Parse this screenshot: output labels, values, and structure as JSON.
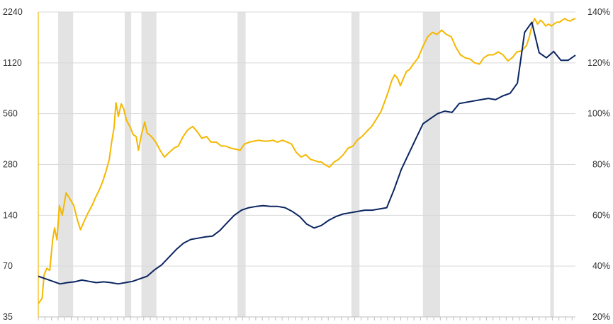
{
  "chart_data": {
    "type": "line",
    "title": "",
    "xlabel": "",
    "ylabel_left": "",
    "ylabel_right": "",
    "grid": true,
    "legend": "none",
    "y_left": {
      "scale": "log2",
      "ylim": [
        35,
        2240
      ],
      "ticks": [
        35,
        70,
        140,
        280,
        560,
        1120,
        2240
      ],
      "tick_labels": [
        "35",
        "70",
        "140",
        "280",
        "560",
        "1120",
        "2240"
      ]
    },
    "y_right": {
      "scale": "linear",
      "ylim": [
        20,
        140
      ],
      "ticks": [
        20,
        40,
        60,
        80,
        100,
        120,
        140
      ],
      "tick_labels": [
        "20%",
        "40%",
        "60%",
        "80%",
        "100%",
        "120%",
        "140%"
      ]
    },
    "x_index_range": [
      0,
      100
    ],
    "shaded_periods": [
      [
        3.7,
        6.5
      ],
      [
        16.1,
        17.3
      ],
      [
        19.2,
        22.0
      ],
      [
        37.1,
        38.6
      ],
      [
        58.3,
        59.8
      ],
      [
        71.6,
        74.8
      ],
      [
        95.3,
        96.0
      ]
    ],
    "series": [
      {
        "axis": "left",
        "color": "#f5b800",
        "points": [
          [
            0,
            42
          ],
          [
            0.8,
            45
          ],
          [
            1.2,
            62
          ],
          [
            1.8,
            68
          ],
          [
            2.4,
            66
          ],
          [
            3.0,
            100
          ],
          [
            3.4,
            118
          ],
          [
            3.9,
            100
          ],
          [
            4.4,
            160
          ],
          [
            5.0,
            140
          ],
          [
            5.8,
            190
          ],
          [
            6.6,
            175
          ],
          [
            7.4,
            160
          ],
          [
            8.2,
            130
          ],
          [
            8.8,
            115
          ],
          [
            9.6,
            130
          ],
          [
            10.4,
            145
          ],
          [
            11.2,
            160
          ],
          [
            12.0,
            180
          ],
          [
            12.8,
            200
          ],
          [
            13.5,
            225
          ],
          [
            14.2,
            260
          ],
          [
            14.8,
            300
          ],
          [
            15.3,
            380
          ],
          [
            15.8,
            460
          ],
          [
            16.2,
            650
          ],
          [
            16.7,
            540
          ],
          [
            17.3,
            640
          ],
          [
            17.8,
            600
          ],
          [
            18.4,
            510
          ],
          [
            19.1,
            470
          ],
          [
            19.8,
            420
          ],
          [
            20.4,
            410
          ],
          [
            20.9,
            340
          ],
          [
            21.5,
            420
          ],
          [
            22.2,
            500
          ],
          [
            22.7,
            430
          ],
          [
            23.6,
            410
          ],
          [
            24.5,
            380
          ],
          [
            25.4,
            340
          ],
          [
            26.3,
            310
          ],
          [
            27.3,
            330
          ],
          [
            28.3,
            350
          ],
          [
            29.2,
            360
          ],
          [
            30.2,
            410
          ],
          [
            31.2,
            450
          ],
          [
            32.2,
            470
          ],
          [
            33.1,
            440
          ],
          [
            34.1,
            400
          ],
          [
            35.1,
            410
          ],
          [
            36.0,
            380
          ],
          [
            37.1,
            380
          ],
          [
            38.2,
            360
          ],
          [
            39.1,
            360
          ],
          [
            40.1,
            350
          ],
          [
            41.1,
            345
          ],
          [
            42.1,
            340
          ],
          [
            43.0,
            370
          ],
          [
            44.0,
            380
          ],
          [
            45.0,
            385
          ],
          [
            46.0,
            390
          ],
          [
            47.0,
            385
          ],
          [
            47.9,
            385
          ],
          [
            48.9,
            390
          ],
          [
            49.9,
            380
          ],
          [
            50.9,
            390
          ],
          [
            51.9,
            380
          ],
          [
            52.8,
            370
          ],
          [
            53.8,
            330
          ],
          [
            54.8,
            310
          ],
          [
            55.8,
            320
          ],
          [
            56.8,
            300
          ],
          [
            57.7,
            295
          ],
          [
            58.4,
            290
          ],
          [
            59.0,
            290
          ],
          [
            59.7,
            280
          ],
          [
            60.7,
            270
          ],
          [
            61.7,
            290
          ],
          [
            62.6,
            300
          ],
          [
            63.6,
            320
          ],
          [
            64.6,
            350
          ],
          [
            65.6,
            360
          ],
          [
            66.5,
            390
          ],
          [
            67.5,
            410
          ],
          [
            68.5,
            440
          ],
          [
            69.5,
            470
          ],
          [
            70.5,
            520
          ],
          [
            71.5,
            580
          ],
          [
            72.4,
            680
          ],
          [
            73.0,
            760
          ],
          [
            73.7,
            880
          ],
          [
            74.3,
            950
          ],
          [
            74.9,
            910
          ],
          [
            75.5,
            820
          ],
          [
            76.1,
            900
          ],
          [
            76.8,
            1000
          ],
          [
            77.4,
            1020
          ],
          [
            78.2,
            1100
          ],
          [
            79.2,
            1200
          ],
          [
            80.2,
            1400
          ],
          [
            81.2,
            1600
          ],
          [
            82.2,
            1700
          ],
          [
            83.1,
            1650
          ],
          [
            84.1,
            1750
          ],
          [
            85.1,
            1650
          ],
          [
            86.1,
            1600
          ],
          [
            87.0,
            1400
          ],
          [
            88.0,
            1250
          ],
          [
            89.0,
            1200
          ],
          [
            90.0,
            1180
          ],
          [
            91.0,
            1120
          ],
          [
            92.0,
            1100
          ],
          [
            92.9,
            1200
          ],
          [
            93.9,
            1250
          ],
          [
            94.9,
            1250
          ],
          [
            95.9,
            1300
          ],
          [
            96.9,
            1250
          ],
          [
            97.9,
            1150
          ],
          [
            98.8,
            1200
          ],
          [
            99.8,
            1300
          ],
          [
            100.8,
            1320
          ],
          [
            101.8,
            1420
          ],
          [
            102.4,
            1600
          ],
          [
            103.0,
            1900
          ],
          [
            103.5,
            2050
          ],
          [
            104.1,
            1900
          ],
          [
            104.7,
            2000
          ],
          [
            105.2,
            1950
          ],
          [
            105.8,
            1850
          ],
          [
            106.4,
            1900
          ],
          [
            107.0,
            1850
          ],
          [
            107.5,
            1900
          ],
          [
            108.1,
            1950
          ],
          [
            108.7,
            1950
          ],
          [
            109.2,
            2000
          ],
          [
            109.8,
            2050
          ],
          [
            110.3,
            2000
          ],
          [
            110.9,
            1980
          ],
          [
            111.4,
            2020
          ],
          [
            112.0,
            2050
          ]
        ]
      },
      {
        "axis": "right",
        "color": "#0b2560",
        "points": [
          [
            0,
            36
          ],
          [
            2,
            35
          ],
          [
            4,
            34
          ],
          [
            6,
            33
          ],
          [
            8,
            33.5
          ],
          [
            10,
            33.8
          ],
          [
            12,
            34.5
          ],
          [
            14,
            34
          ],
          [
            16,
            33.5
          ],
          [
            18,
            33.8
          ],
          [
            20,
            33.5
          ],
          [
            22,
            33
          ],
          [
            24,
            33.5
          ],
          [
            26,
            34
          ],
          [
            28,
            35
          ],
          [
            30,
            36
          ],
          [
            32,
            38.5
          ],
          [
            34,
            40.5
          ],
          [
            36,
            43.5
          ],
          [
            38,
            46.5
          ],
          [
            40,
            49
          ],
          [
            42,
            50.5
          ],
          [
            44,
            51
          ],
          [
            46,
            51.5
          ],
          [
            48,
            51.8
          ],
          [
            50,
            54
          ],
          [
            52,
            57
          ],
          [
            54,
            60
          ],
          [
            56,
            62
          ],
          [
            58,
            63
          ],
          [
            60,
            63.5
          ],
          [
            62,
            63.8
          ],
          [
            64,
            63.5
          ],
          [
            66,
            63.5
          ],
          [
            68,
            63
          ],
          [
            70,
            61.5
          ],
          [
            72,
            59.5
          ],
          [
            74,
            56.5
          ],
          [
            76,
            55
          ],
          [
            78,
            56
          ],
          [
            80,
            58
          ],
          [
            82,
            59.5
          ],
          [
            84,
            60.5
          ],
          [
            86,
            61
          ],
          [
            88,
            61.5
          ],
          [
            90,
            62
          ],
          [
            92,
            62
          ],
          [
            94,
            62.5
          ],
          [
            96,
            63
          ],
          [
            98,
            70
          ],
          [
            100,
            78
          ],
          [
            102,
            84
          ],
          [
            104,
            90
          ],
          [
            106,
            96
          ],
          [
            108,
            98
          ],
          [
            110,
            100
          ],
          [
            112,
            101
          ],
          [
            114,
            100.5
          ],
          [
            116,
            104
          ],
          [
            118,
            104.5
          ],
          [
            120,
            105
          ],
          [
            122,
            105.5
          ],
          [
            124,
            106
          ],
          [
            126,
            105.5
          ],
          [
            128,
            107
          ],
          [
            130,
            108
          ],
          [
            132,
            112
          ],
          [
            134,
            132
          ],
          [
            136,
            136
          ],
          [
            138,
            124
          ],
          [
            140,
            122
          ],
          [
            142,
            124.5
          ],
          [
            144,
            121
          ],
          [
            146,
            121
          ],
          [
            148,
            123
          ]
        ]
      }
    ]
  }
}
